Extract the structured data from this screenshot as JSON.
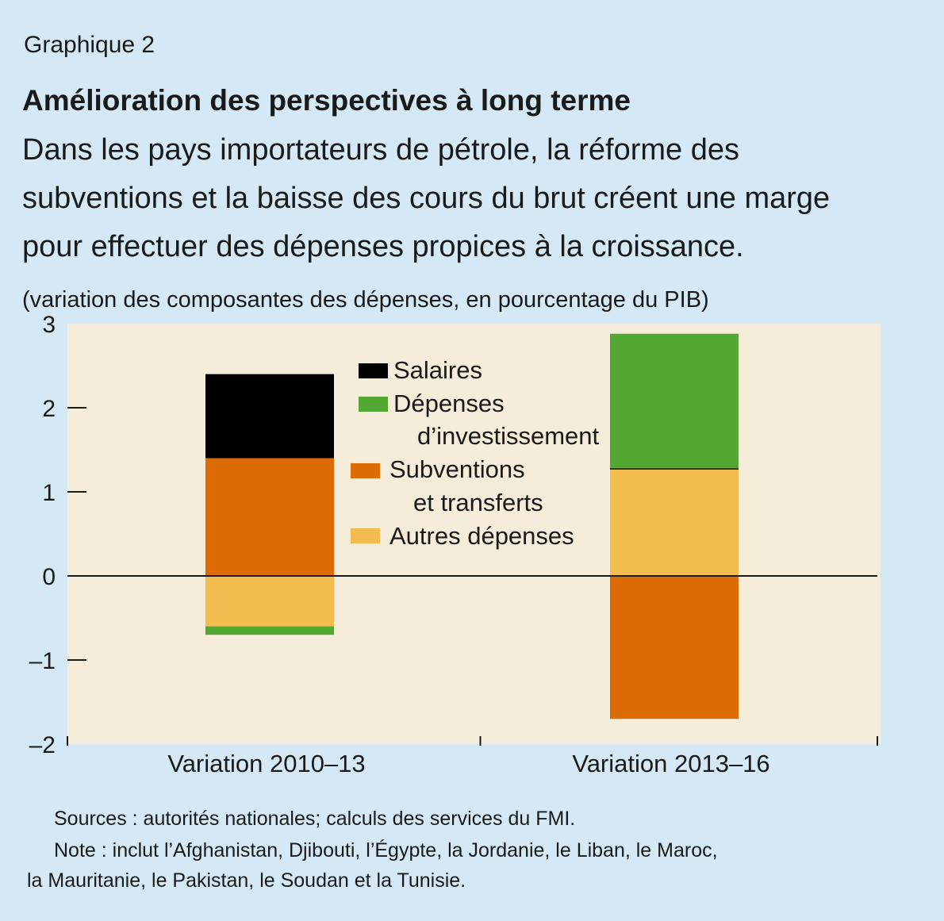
{
  "header": {
    "label": "Graphique 2",
    "title": "Amélioration des perspectives à long terme",
    "subtitle_lines": [
      "Dans les pays importateurs de pétrole, la réforme des",
      "subventions et la baisse des cours du brut créent une marge",
      "pour effectuer des dépenses propices à la croissance."
    ],
    "units": "(variation des composantes des dépenses, en pourcentage du PIB)"
  },
  "colors": {
    "background": "#d4e9f5",
    "plot_background": "#f5ecd9",
    "salaires": "#000000",
    "depenses_investissement": "#52a833",
    "subventions_transferts": "#de6c06",
    "autres_depenses": "#f2bc4f"
  },
  "chart_data": {
    "type": "bar",
    "stacked": true,
    "categories": [
      "Variation 2010–13",
      "Variation 2013–16"
    ],
    "ylim": [
      -2,
      3
    ],
    "yticks": [
      -2,
      -1,
      0,
      1,
      2,
      3
    ],
    "ytick_labels": [
      "–2",
      "–1",
      "0",
      "1",
      "2",
      "3"
    ],
    "xlabel": "",
    "ylabel": "",
    "grid": false,
    "legend_position": "top-center",
    "series": [
      {
        "name": "Salaires",
        "legend_lines": [
          "Salaires"
        ],
        "color": "#000000",
        "values": [
          1.0,
          0.01
        ]
      },
      {
        "name": "Dépenses d’investissement",
        "legend_lines": [
          "Dépenses",
          "d’investissement"
        ],
        "color": "#52a833",
        "values": [
          -0.1,
          1.6
        ]
      },
      {
        "name": "Subventions et transferts",
        "legend_lines": [
          "Subventions",
          "et transferts"
        ],
        "color": "#de6c06",
        "values": [
          1.4,
          -1.7
        ]
      },
      {
        "name": "Autres dépenses",
        "legend_lines": [
          "Autres dépenses"
        ],
        "color": "#f2bc4f",
        "values": [
          -0.6,
          1.27
        ]
      }
    ]
  },
  "footer": {
    "sources": "Sources : autorités nationales; calculs des services du FMI.",
    "note_line1": "Note : inclut l’Afghanistan, Djibouti, l’Égypte, la Jordanie, le Liban, le Maroc,",
    "note_line2": "la Mauritanie, le Pakistan, le Soudan et la Tunisie."
  }
}
